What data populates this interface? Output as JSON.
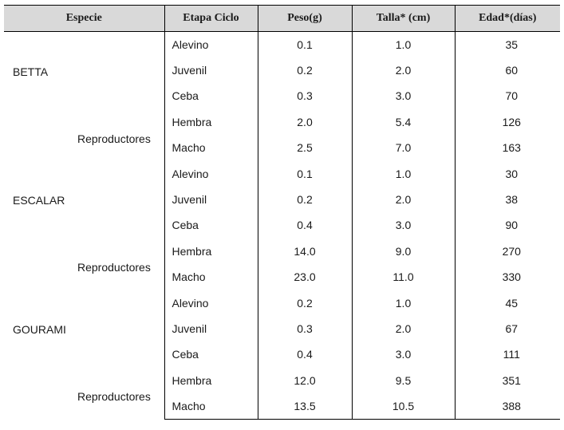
{
  "headers": {
    "especie": "Especie",
    "etapa": "Etapa Ciclo",
    "peso": "Peso(g)",
    "talla": "Talla* (cm)",
    "edad": "Edad*(días)"
  },
  "groups": [
    {
      "species": "BETTA",
      "repro_label": "Reproductores",
      "rows": [
        {
          "etapa": "Alevino",
          "peso": "0.1",
          "talla": "1.0",
          "edad": "35"
        },
        {
          "etapa": "Juvenil",
          "peso": "0.2",
          "talla": "2.0",
          "edad": "60"
        },
        {
          "etapa": "Ceba",
          "peso": "0.3",
          "talla": "3.0",
          "edad": "70"
        },
        {
          "etapa": "Hembra",
          "peso": "2.0",
          "talla": "5.4",
          "edad": "126"
        },
        {
          "etapa": "Macho",
          "peso": "2.5",
          "talla": "7.0",
          "edad": "163"
        }
      ]
    },
    {
      "species": "ESCALAR",
      "repro_label": "Reproductores",
      "rows": [
        {
          "etapa": "Alevino",
          "peso": "0.1",
          "talla": "1.0",
          "edad": "30"
        },
        {
          "etapa": "Juvenil",
          "peso": "0.2",
          "talla": "2.0",
          "edad": "38"
        },
        {
          "etapa": "Ceba",
          "peso": "0.4",
          "talla": "3.0",
          "edad": "90"
        },
        {
          "etapa": "Hembra",
          "peso": "14.0",
          "talla": "9.0",
          "edad": "270"
        },
        {
          "etapa": "Macho",
          "peso": "23.0",
          "talla": "11.0",
          "edad": "330"
        }
      ]
    },
    {
      "species": "GOURAMI",
      "repro_label": "Reproductores",
      "rows": [
        {
          "etapa": "Alevino",
          "peso": "0.2",
          "talla": "1.0",
          "edad": "45"
        },
        {
          "etapa": "Juvenil",
          "peso": "0.3",
          "talla": "2.0",
          "edad": "67"
        },
        {
          "etapa": "Ceba",
          "peso": "0.4",
          "talla": "3.0",
          "edad": "111"
        },
        {
          "etapa": "Hembra",
          "peso": "12.0",
          "talla": "9.5",
          "edad": "351"
        },
        {
          "etapa": "Macho",
          "peso": "13.5",
          "talla": "10.5",
          "edad": "388"
        }
      ]
    }
  ],
  "colors": {
    "header_bg": "#d9d9d9",
    "border": "#000000"
  }
}
